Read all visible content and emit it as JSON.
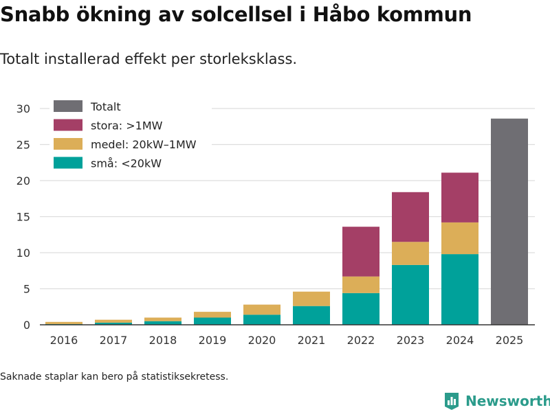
{
  "header": {
    "title": "Snabb ökning av solcellsel i Håbo kommun",
    "subtitle": "Totalt installerad effekt per storleksklass."
  },
  "footer": {
    "note": "Saknade staplar kan bero på statistiksekretess.",
    "brand": "Newsworthy",
    "brand_icon": "bar-chart-logo-icon"
  },
  "colors": {
    "total": "#6f6e73",
    "large": "#a43f66",
    "medium": "#dcae58",
    "small": "#00a19a",
    "grid": "#dddddd",
    "axis": "#333333",
    "brand": "#2b9b8b"
  },
  "chart_data": {
    "type": "bar",
    "stacked": true,
    "title": "Snabb ökning av solcellsel i Håbo kommun",
    "subtitle": "Totalt installerad effekt per storleksklass.",
    "xlabel": "",
    "ylabel": "",
    "ylim": [
      0,
      30
    ],
    "yticks": [
      "0",
      "5",
      "10",
      "15",
      "20",
      "25",
      "30"
    ],
    "ytick_values": [
      0,
      5,
      10,
      15,
      20,
      25,
      30
    ],
    "grid": true,
    "legend_position": "top-left",
    "categories": [
      "2016",
      "2017",
      "2018",
      "2019",
      "2020",
      "2021",
      "2022",
      "2023",
      "2024",
      "2025"
    ],
    "series": [
      {
        "name": "små: <20kW",
        "key": "small",
        "values": [
          0.1,
          0.3,
          0.5,
          1.0,
          1.4,
          2.6,
          4.4,
          8.3,
          9.8,
          null
        ]
      },
      {
        "name": "medel: 20kW–1MW",
        "key": "medium",
        "values": [
          0.3,
          0.4,
          0.5,
          0.8,
          1.4,
          2.0,
          2.3,
          3.2,
          4.4,
          null
        ]
      },
      {
        "name": "stora: >1MW",
        "key": "large",
        "values": [
          null,
          null,
          null,
          null,
          null,
          null,
          6.9,
          6.9,
          6.9,
          null
        ]
      },
      {
        "name": "Totalt",
        "key": "total",
        "values": [
          null,
          null,
          null,
          null,
          null,
          null,
          null,
          null,
          null,
          28.6
        ]
      }
    ],
    "legend": [
      "Totalt",
      "stora: >1MW",
      "medel: 20kW–1MW",
      "små: <20kW"
    ]
  }
}
